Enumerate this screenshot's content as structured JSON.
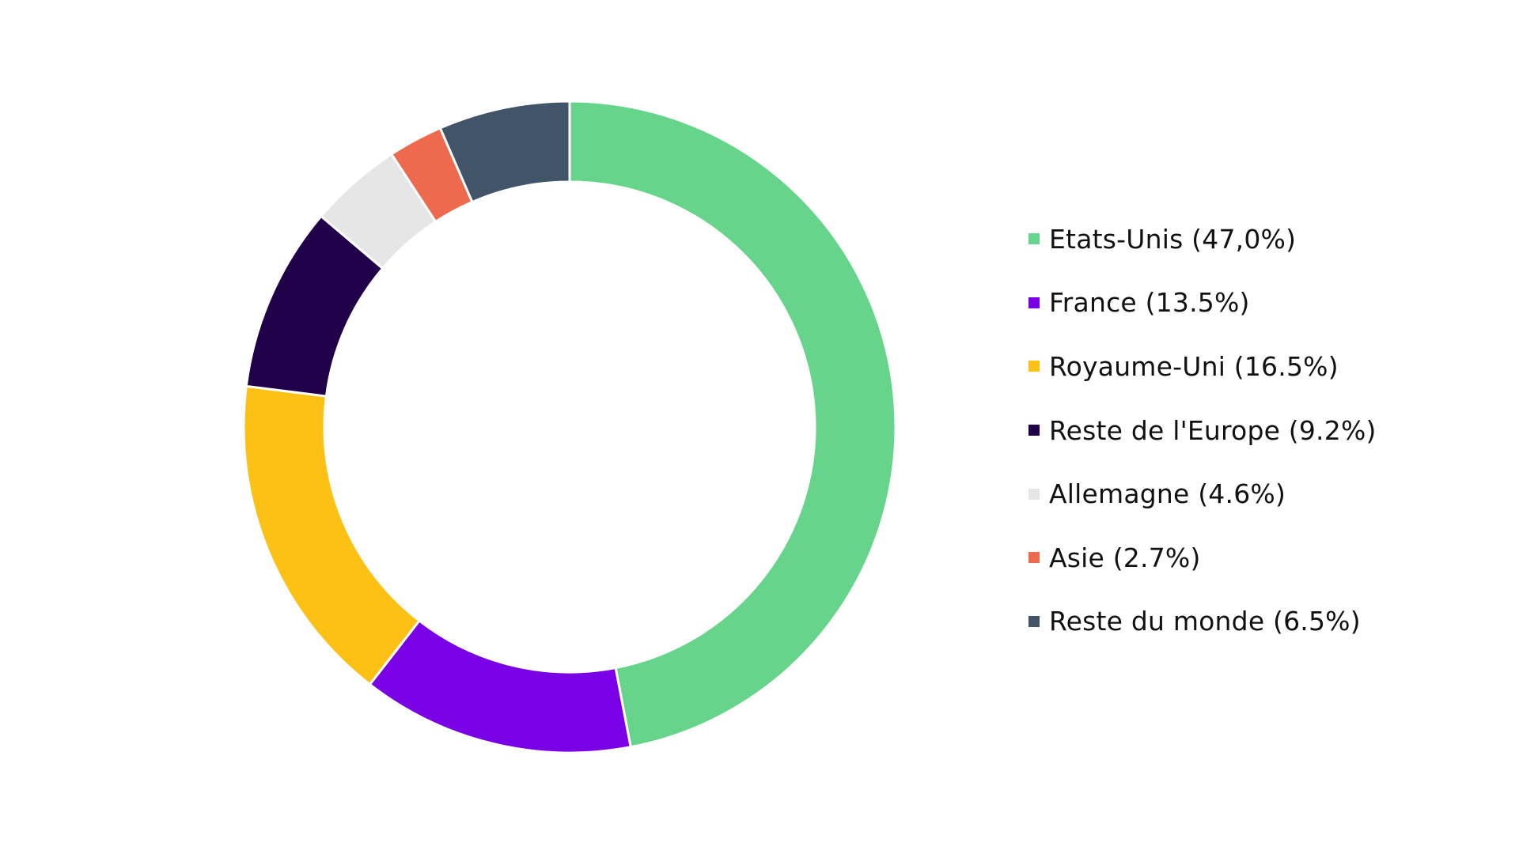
{
  "chart_data": {
    "type": "pie",
    "variant": "donut",
    "start_angle_deg": 0,
    "direction": "clockwise",
    "slices": [
      {
        "label": "Etats-Unis (47,0%)",
        "value": 47.0,
        "color": "#66D48B"
      },
      {
        "label": "France (13.5%)",
        "value": 13.5,
        "color": "#7A00E6"
      },
      {
        "label": "Royaume-Uni (16.5%)",
        "value": 16.5,
        "color": "#FDC115"
      },
      {
        "label": "Reste de l'Europe (9.2%)",
        "value": 9.2,
        "color": "#21004A"
      },
      {
        "label": "Allemagne (4.6%)",
        "value": 4.6,
        "color": "#E6E6E6"
      },
      {
        "label": "Asie (2.7%)",
        "value": 2.7,
        "color": "#EE6A4F"
      },
      {
        "label": "Reste du monde (6.5%)",
        "value": 6.5,
        "color": "#425468"
      }
    ],
    "legend_position": "right"
  }
}
